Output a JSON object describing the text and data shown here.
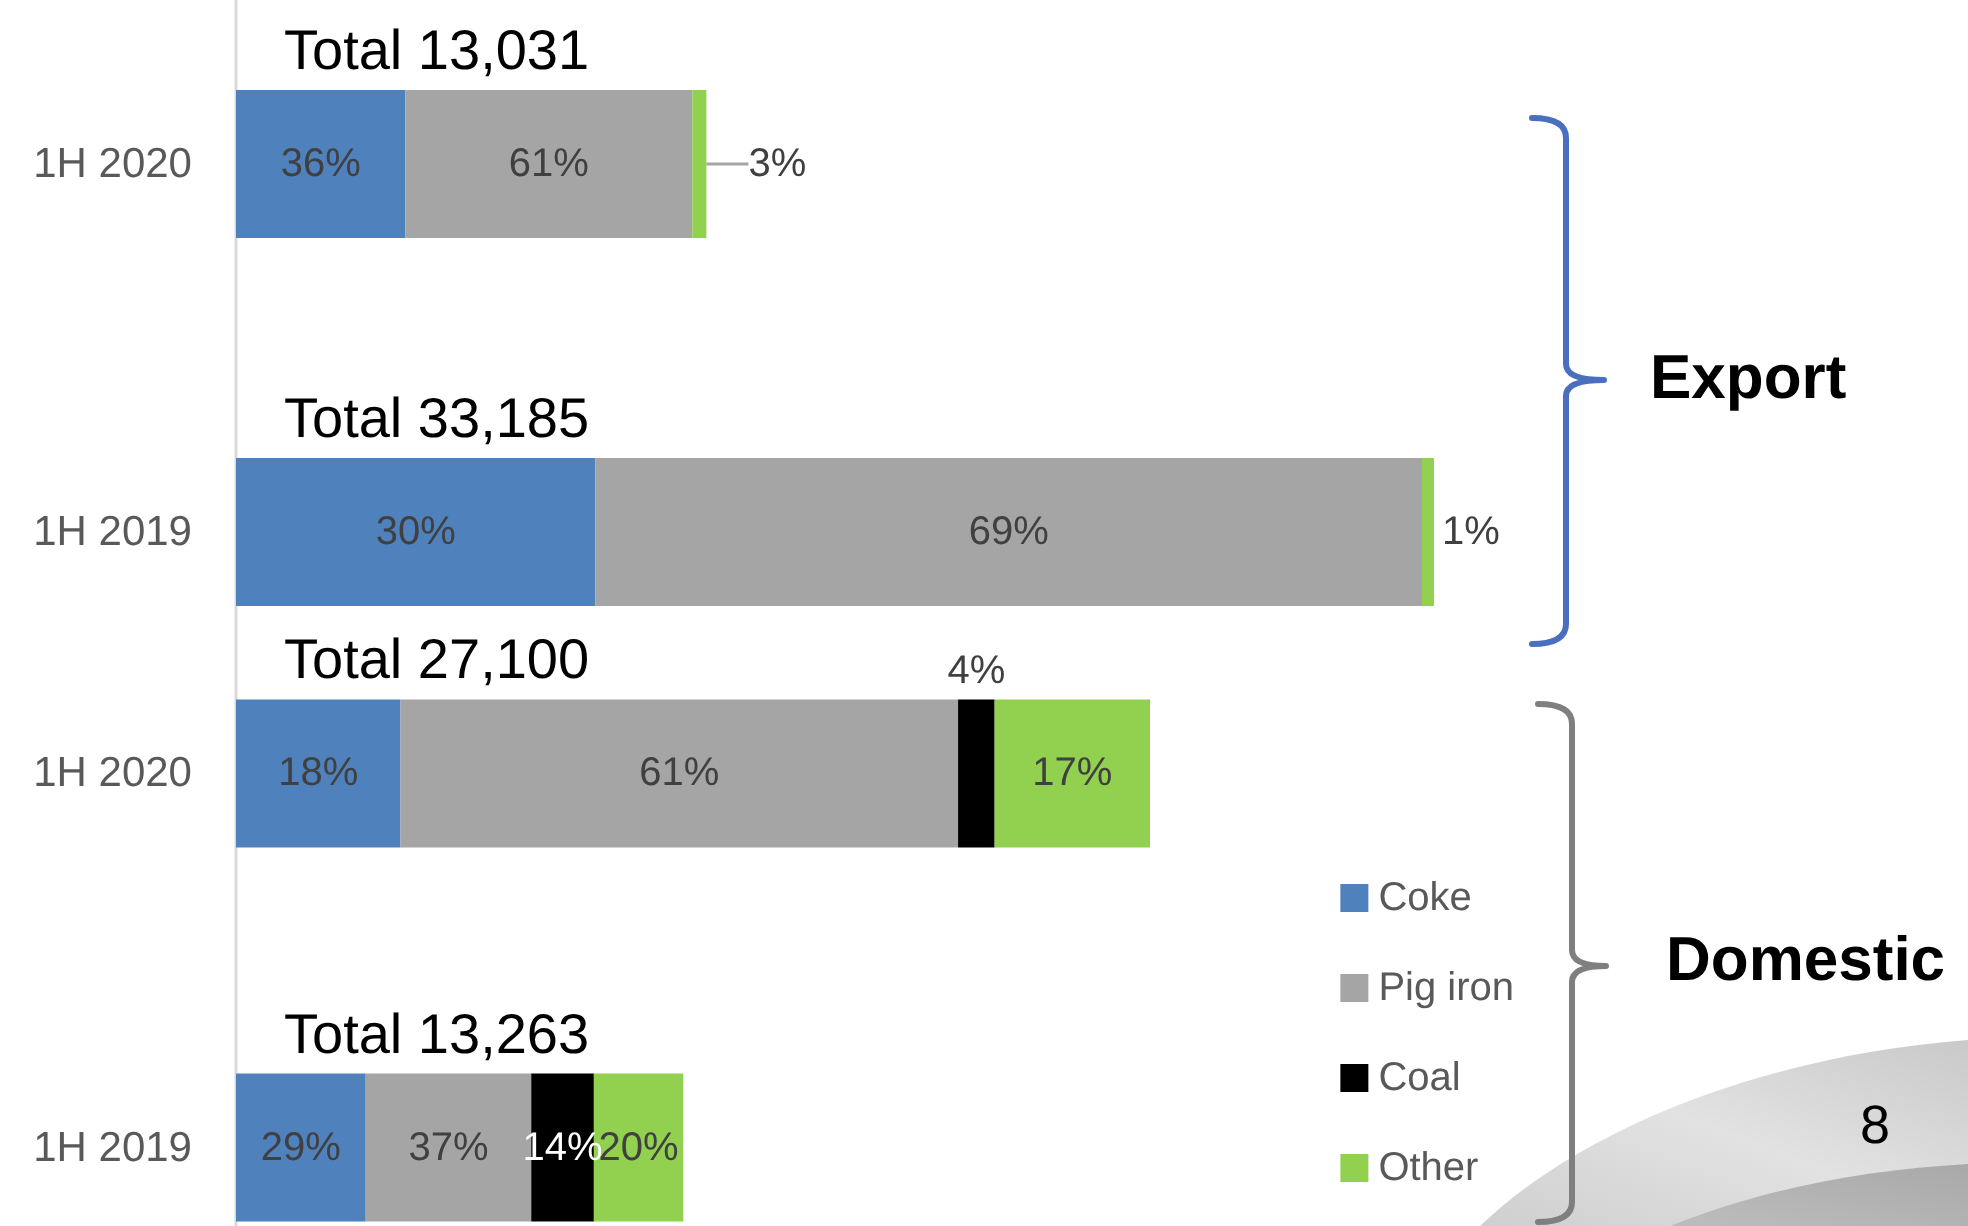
{
  "chart_data": [
    {
      "type": "bar",
      "orientation": "horizontal",
      "stacked": true,
      "tick_labels": "y",
      "categories": [
        "1H 2020"
      ],
      "series": [
        {
          "color": "#4f81bd",
          "values": [
            36
          ],
          "value_labels": [
            "36%"
          ]
        },
        {
          "color": "#a5a5a5",
          "values": [
            61
          ],
          "value_labels": [
            "61%"
          ]
        },
        {
          "color": "#92d050",
          "values": [
            3
          ],
          "value_labels": [
            "3%"
          ]
        }
      ],
      "totals": [
        "Total 13,031"
      ]
    },
    {
      "type": "bar",
      "orientation": "horizontal",
      "stacked": true,
      "tick_labels": "y",
      "categories": [
        "1H 2019"
      ],
      "series": [
        {
          "color": "#4f81bd",
          "values": [
            30
          ],
          "value_labels": [
            "30%"
          ]
        },
        {
          "color": "#a5a5a5",
          "values": [
            69
          ],
          "value_labels": [
            "69%"
          ]
        },
        {
          "color": "#92d050",
          "values": [
            1
          ],
          "value_labels": [
            "1%"
          ]
        }
      ],
      "totals": [
        "Total 33,185"
      ],
      "annotations": [
        "Export"
      ]
    },
    {
      "type": "bar",
      "orientation": "horizontal",
      "stacked": true,
      "tick_labels": "y",
      "categories": [
        "1H 2020"
      ],
      "series": [
        {
          "color": "#4f81bd",
          "values": [
            18
          ],
          "value_labels": [
            "18%"
          ]
        },
        {
          "color": "#a5a5a5",
          "values": [
            61
          ],
          "value_labels": [
            "61%"
          ]
        },
        {
          "color": "#000000",
          "values": [
            4
          ],
          "value_labels": [
            "4%"
          ]
        },
        {
          "color": "#92d050",
          "values": [
            17
          ],
          "value_labels": [
            "17%"
          ]
        }
      ],
      "totals": [
        "Total 27,100"
      ]
    },
    {
      "type": "bar",
      "orientation": "horizontal",
      "stacked": true,
      "tick_labels": "y",
      "categories": [
        "1H 2019"
      ],
      "series": [
        {
          "name": "Coke",
          "color": "#4f81bd",
          "values": [
            29
          ],
          "value_labels": [
            "29%"
          ]
        },
        {
          "name": "Pig iron",
          "color": "#a5a5a5",
          "values": [
            37
          ],
          "value_labels": [
            "37%"
          ]
        },
        {
          "name": "Coal",
          "color": "#000000",
          "values": [
            14
          ],
          "value_labels": [
            "14%"
          ]
        },
        {
          "name": "Other",
          "color": "#92d050",
          "values": [
            20
          ],
          "value_labels": [
            "20%"
          ]
        }
      ],
      "totals": [
        "Total 13,263"
      ],
      "annotations": [
        "Domestic",
        "8"
      ],
      "legend": "top right"
    }
  ]
}
